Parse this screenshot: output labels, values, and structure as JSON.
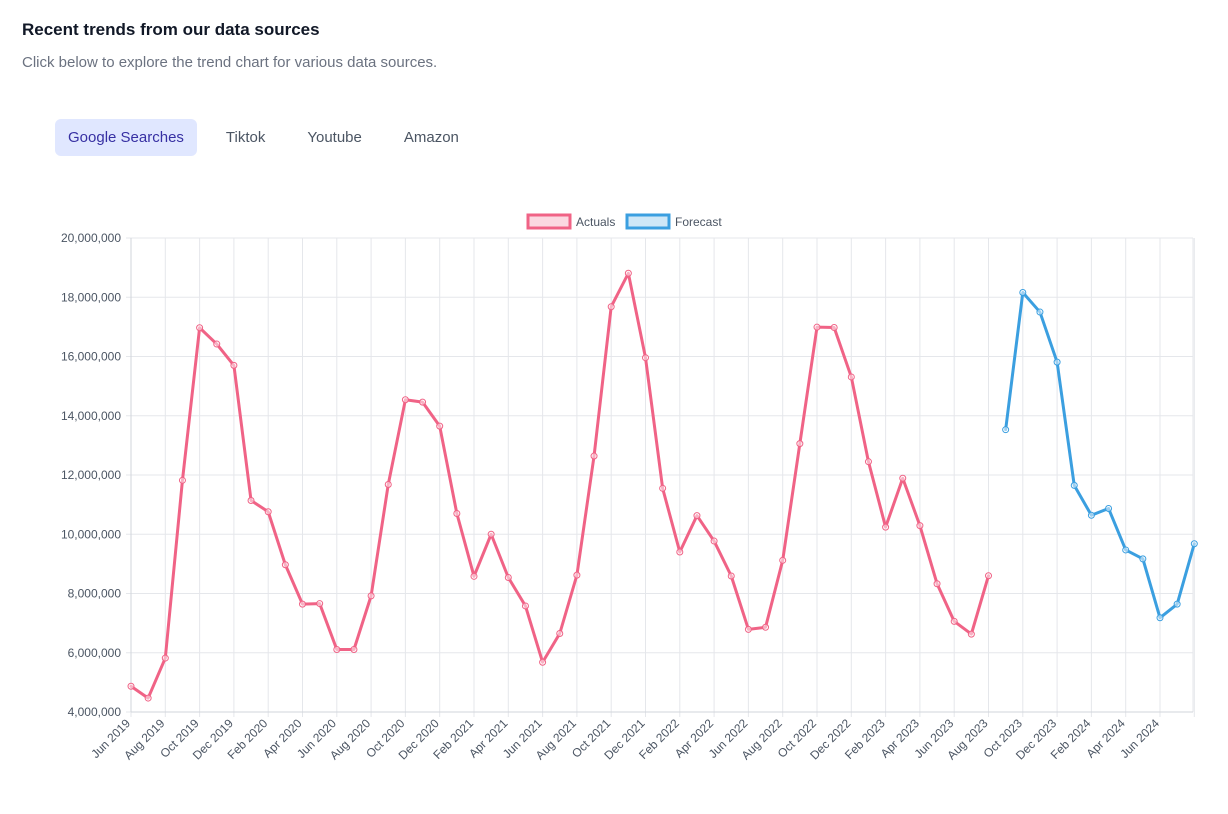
{
  "header": {
    "title": "Recent trends from our data sources",
    "subtitle": "Click below to explore the trend chart for various data sources."
  },
  "tabs": [
    {
      "label": "Google Searches",
      "active": true
    },
    {
      "label": "Tiktok",
      "active": false
    },
    {
      "label": "Youtube",
      "active": false
    },
    {
      "label": "Amazon",
      "active": false
    }
  ],
  "colors": {
    "actuals": "#f06386",
    "forecast": "#3b9fe0",
    "grid": "#e5e7eb"
  },
  "chart_data": {
    "type": "line",
    "title": "",
    "xlabel": "",
    "ylabel": "",
    "ylim": [
      4000000,
      20000000
    ],
    "yticks": [
      "4,000,000",
      "6,000,000",
      "8,000,000",
      "10,000,000",
      "12,000,000",
      "14,000,000",
      "16,000,000",
      "18,000,000",
      "20,000,000"
    ],
    "x_tick_labels": [
      "Jun 2019",
      "Aug 2019",
      "Oct 2019",
      "Dec 2019",
      "Feb 2020",
      "Apr 2020",
      "Jun 2020",
      "Aug 2020",
      "Oct 2020",
      "Dec 2020",
      "Feb 2021",
      "Apr 2021",
      "Jun 2021",
      "Aug 2021",
      "Oct 2021",
      "Dec 2021",
      "Feb 2022",
      "Apr 2022",
      "Jun 2022",
      "Aug 2022",
      "Oct 2022",
      "Dec 2022",
      "Feb 2023",
      "Apr 2023",
      "Jun 2023",
      "Aug 2023",
      "Oct 2023",
      "Dec 2023",
      "Feb 2024",
      "Apr 2024",
      "Jun 2024"
    ],
    "legend": [
      "Actuals",
      "Forecast"
    ],
    "legend_position": "top",
    "months_total": 63,
    "series": [
      {
        "name": "Actuals",
        "start_index": 0,
        "values": [
          4870000,
          4470000,
          5820000,
          11820000,
          16970000,
          16420000,
          15700000,
          11140000,
          10760000,
          8970000,
          7640000,
          7660000,
          6110000,
          6110000,
          7920000,
          11680000,
          14540000,
          14460000,
          13650000,
          10700000,
          8580000,
          10000000,
          8540000,
          7580000,
          5680000,
          6650000,
          8620000,
          12640000,
          17680000,
          18810000,
          15960000,
          11550000,
          9400000,
          10630000,
          9770000,
          8590000,
          6790000,
          6860000,
          9120000,
          13060000,
          16990000,
          16980000,
          15310000,
          12450000,
          10240000,
          11890000,
          10290000,
          8330000,
          7060000,
          6630000,
          8600000
        ]
      },
      {
        "name": "Forecast",
        "start_index": 51,
        "values": [
          13530000,
          18160000,
          17500000,
          15810000,
          11650000,
          10640000,
          10870000,
          9470000,
          9170000,
          7180000,
          7640000,
          9680000
        ]
      }
    ]
  }
}
